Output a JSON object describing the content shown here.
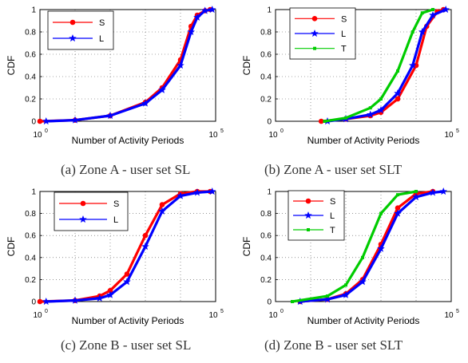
{
  "chart_data": [
    {
      "type": "line",
      "caption": "(a) Zone A - user set SL",
      "xlabel": "Number of Activity Periods",
      "ylabel": "CDF",
      "xscale": "log",
      "xlim": [
        1,
        100000
      ],
      "ylim": [
        0,
        1
      ],
      "x_ticks": [
        {
          "base": "10",
          "exp": "0"
        },
        {
          "base": "10",
          "exp": "5"
        }
      ],
      "y_ticks": [
        "0",
        "0.2",
        "0.4",
        "0.6",
        "0.8",
        "1"
      ],
      "grid": true,
      "legend_position": "top-left",
      "series": [
        {
          "name": "S",
          "color": "#ff0000",
          "marker": "dot",
          "x": [
            1,
            10,
            100,
            1000,
            3000,
            10000,
            20000,
            30000,
            50000,
            70000
          ],
          "y": [
            0,
            0.01,
            0.05,
            0.17,
            0.3,
            0.55,
            0.85,
            0.95,
            0.99,
            1
          ]
        },
        {
          "name": "L",
          "color": "#0000ff",
          "marker": "star",
          "x": [
            1.5,
            10,
            100,
            1000,
            3000,
            10000,
            20000,
            30000,
            50000,
            80000
          ],
          "y": [
            0,
            0.01,
            0.05,
            0.16,
            0.28,
            0.5,
            0.8,
            0.93,
            0.99,
            1
          ]
        }
      ]
    },
    {
      "type": "line",
      "caption": "(b) Zone A - user set SLT",
      "xlabel": "Number of Activity Periods",
      "ylabel": "CDF",
      "xscale": "log",
      "xlim": [
        1,
        100000
      ],
      "ylim": [
        0,
        1
      ],
      "x_ticks": [
        {
          "base": "10",
          "exp": "0"
        },
        {
          "base": "10",
          "exp": "5"
        }
      ],
      "y_ticks": [
        "0",
        "0.2",
        "0.4",
        "0.6",
        "0.8",
        "1"
      ],
      "grid": true,
      "legend_position": "top-left",
      "series": [
        {
          "name": "S",
          "color": "#ff0000",
          "marker": "dot",
          "x": [
            20,
            100,
            500,
            1000,
            3000,
            10000,
            20000,
            40000,
            60000
          ],
          "y": [
            0,
            0.02,
            0.05,
            0.08,
            0.2,
            0.5,
            0.85,
            0.98,
            1
          ]
        },
        {
          "name": "L",
          "color": "#0000ff",
          "marker": "star",
          "x": [
            30,
            100,
            500,
            1000,
            3000,
            8000,
            15000,
            30000,
            70000
          ],
          "y": [
            0,
            0.02,
            0.06,
            0.1,
            0.25,
            0.5,
            0.8,
            0.95,
            1
          ]
        },
        {
          "name": "T",
          "color": "#00cc00",
          "marker": "square",
          "x": [
            25,
            100,
            500,
            1000,
            3000,
            8000,
            15000,
            30000
          ],
          "y": [
            0,
            0.03,
            0.12,
            0.2,
            0.45,
            0.8,
            0.97,
            1
          ]
        }
      ]
    },
    {
      "type": "line",
      "caption": "(c) Zone B - user set SL",
      "xlabel": "Number of Activity Periods",
      "ylabel": "CDF",
      "xscale": "log",
      "xlim": [
        1,
        100000
      ],
      "ylim": [
        0,
        1
      ],
      "x_ticks": [
        {
          "base": "10",
          "exp": "0"
        },
        {
          "base": "10",
          "exp": "5"
        }
      ],
      "y_ticks": [
        "0",
        "0.2",
        "0.4",
        "0.6",
        "0.8",
        "1"
      ],
      "grid": true,
      "legend_position": "top-left",
      "series": [
        {
          "name": "S",
          "color": "#ff0000",
          "marker": "dot",
          "x": [
            1,
            10,
            50,
            100,
            300,
            1000,
            3000,
            10000,
            30000,
            70000
          ],
          "y": [
            0,
            0.01,
            0.05,
            0.1,
            0.25,
            0.6,
            0.88,
            0.98,
            1,
            1
          ]
        },
        {
          "name": "L",
          "color": "#0000ff",
          "marker": "star",
          "x": [
            1.5,
            10,
            50,
            100,
            300,
            1000,
            3000,
            10000,
            30000,
            80000
          ],
          "y": [
            0,
            0.01,
            0.03,
            0.06,
            0.18,
            0.5,
            0.82,
            0.96,
            0.99,
            1
          ]
        }
      ]
    },
    {
      "type": "line",
      "caption": "(d) Zone B - user set SLT",
      "xlabel": "Number of Activity Periods",
      "ylabel": "CDF",
      "xscale": "log",
      "xlim": [
        1,
        100000
      ],
      "ylim": [
        0,
        1
      ],
      "x_ticks": [
        {
          "base": "10",
          "exp": "0"
        },
        {
          "base": "10",
          "exp": "5"
        }
      ],
      "y_ticks": [
        "0",
        "0.2",
        "0.4",
        "0.6",
        "0.8",
        "1"
      ],
      "grid": true,
      "legend_position": "top-left",
      "series": [
        {
          "name": "S",
          "color": "#ff0000",
          "marker": "dot",
          "x": [
            5,
            30,
            100,
            300,
            1000,
            3000,
            10000,
            30000
          ],
          "y": [
            0,
            0.02,
            0.07,
            0.2,
            0.52,
            0.85,
            0.98,
            1
          ]
        },
        {
          "name": "L",
          "color": "#0000ff",
          "marker": "star",
          "x": [
            5,
            30,
            100,
            300,
            1000,
            3000,
            10000,
            30000,
            60000
          ],
          "y": [
            0,
            0.02,
            0.06,
            0.18,
            0.48,
            0.8,
            0.95,
            0.99,
            1
          ]
        },
        {
          "name": "T",
          "color": "#00cc00",
          "marker": "square",
          "x": [
            3,
            30,
            100,
            300,
            1000,
            3000,
            10000
          ],
          "y": [
            0,
            0.05,
            0.15,
            0.4,
            0.8,
            0.97,
            1
          ]
        }
      ]
    }
  ]
}
